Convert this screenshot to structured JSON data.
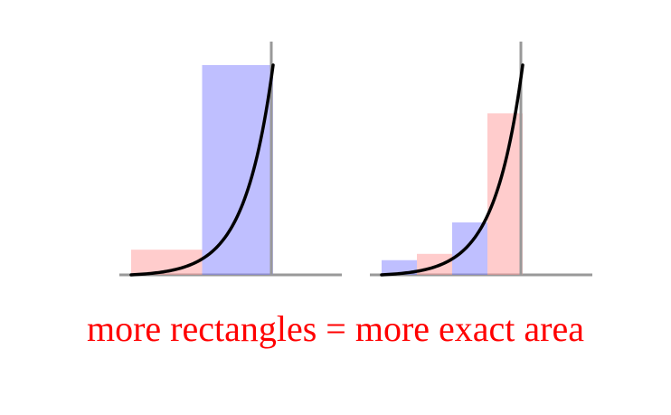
{
  "caption": "more rectangles = more exact area",
  "colors": {
    "caption": "#ff0000",
    "axis": "#999999",
    "curve": "#000000",
    "rect_red": "#ff9999",
    "rect_blue": "#8080ff"
  },
  "panels": [
    {
      "name": "two-rectangles",
      "rectangles": [
        {
          "color": "red",
          "height": 0.12
        },
        {
          "color": "blue",
          "height": 1.0
        }
      ]
    },
    {
      "name": "four-rectangles",
      "rectangles": [
        {
          "color": "blue",
          "height": 0.07
        },
        {
          "color": "red",
          "height": 0.1
        },
        {
          "color": "blue",
          "height": 0.25
        },
        {
          "color": "red",
          "height": 0.77
        }
      ]
    }
  ]
}
